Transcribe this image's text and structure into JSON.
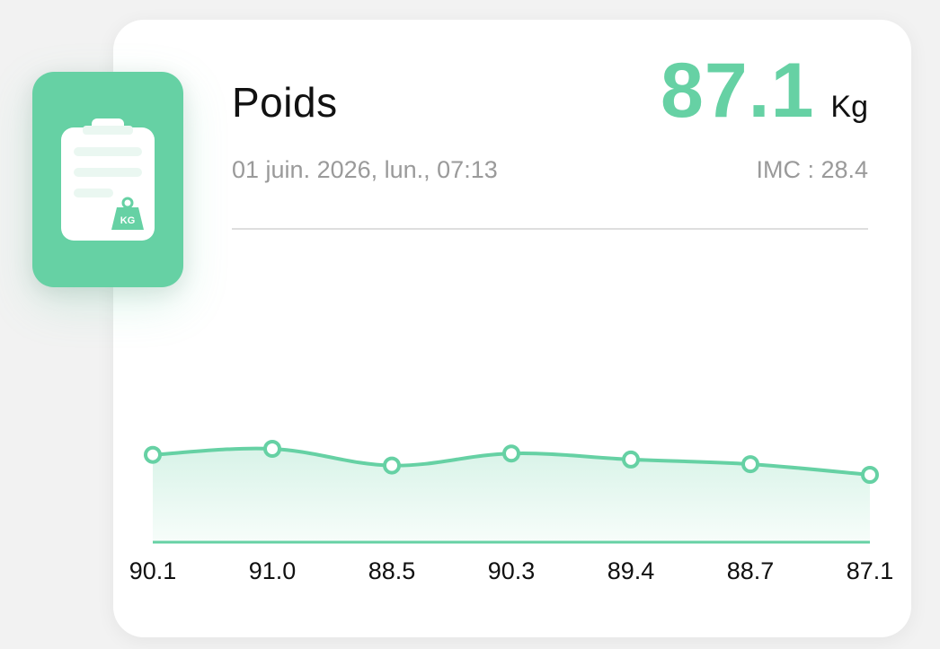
{
  "card": {
    "title": "Poids",
    "value": "87.1",
    "unit": "Kg",
    "datetime": "01 juin. 2026, lun., 07:13",
    "bmi_label": "IMC : 28.4"
  },
  "badge": {
    "icon": "clipboard-scale-icon",
    "icon_text": "KG"
  },
  "colors": {
    "accent": "#66d1a4",
    "accent_fill": "#e8f8f1",
    "text_primary": "#111111",
    "text_secondary": "#9a9a9a",
    "divider": "#dedede"
  },
  "chart_data": {
    "type": "area",
    "categories": [
      "90.1",
      "91.0",
      "88.5",
      "90.3",
      "89.4",
      "88.7",
      "87.1"
    ],
    "values": [
      90.1,
      91.0,
      88.5,
      90.3,
      89.4,
      88.7,
      87.1
    ],
    "title": "",
    "xlabel": "",
    "ylabel": "",
    "grid": false,
    "legend": "none"
  }
}
